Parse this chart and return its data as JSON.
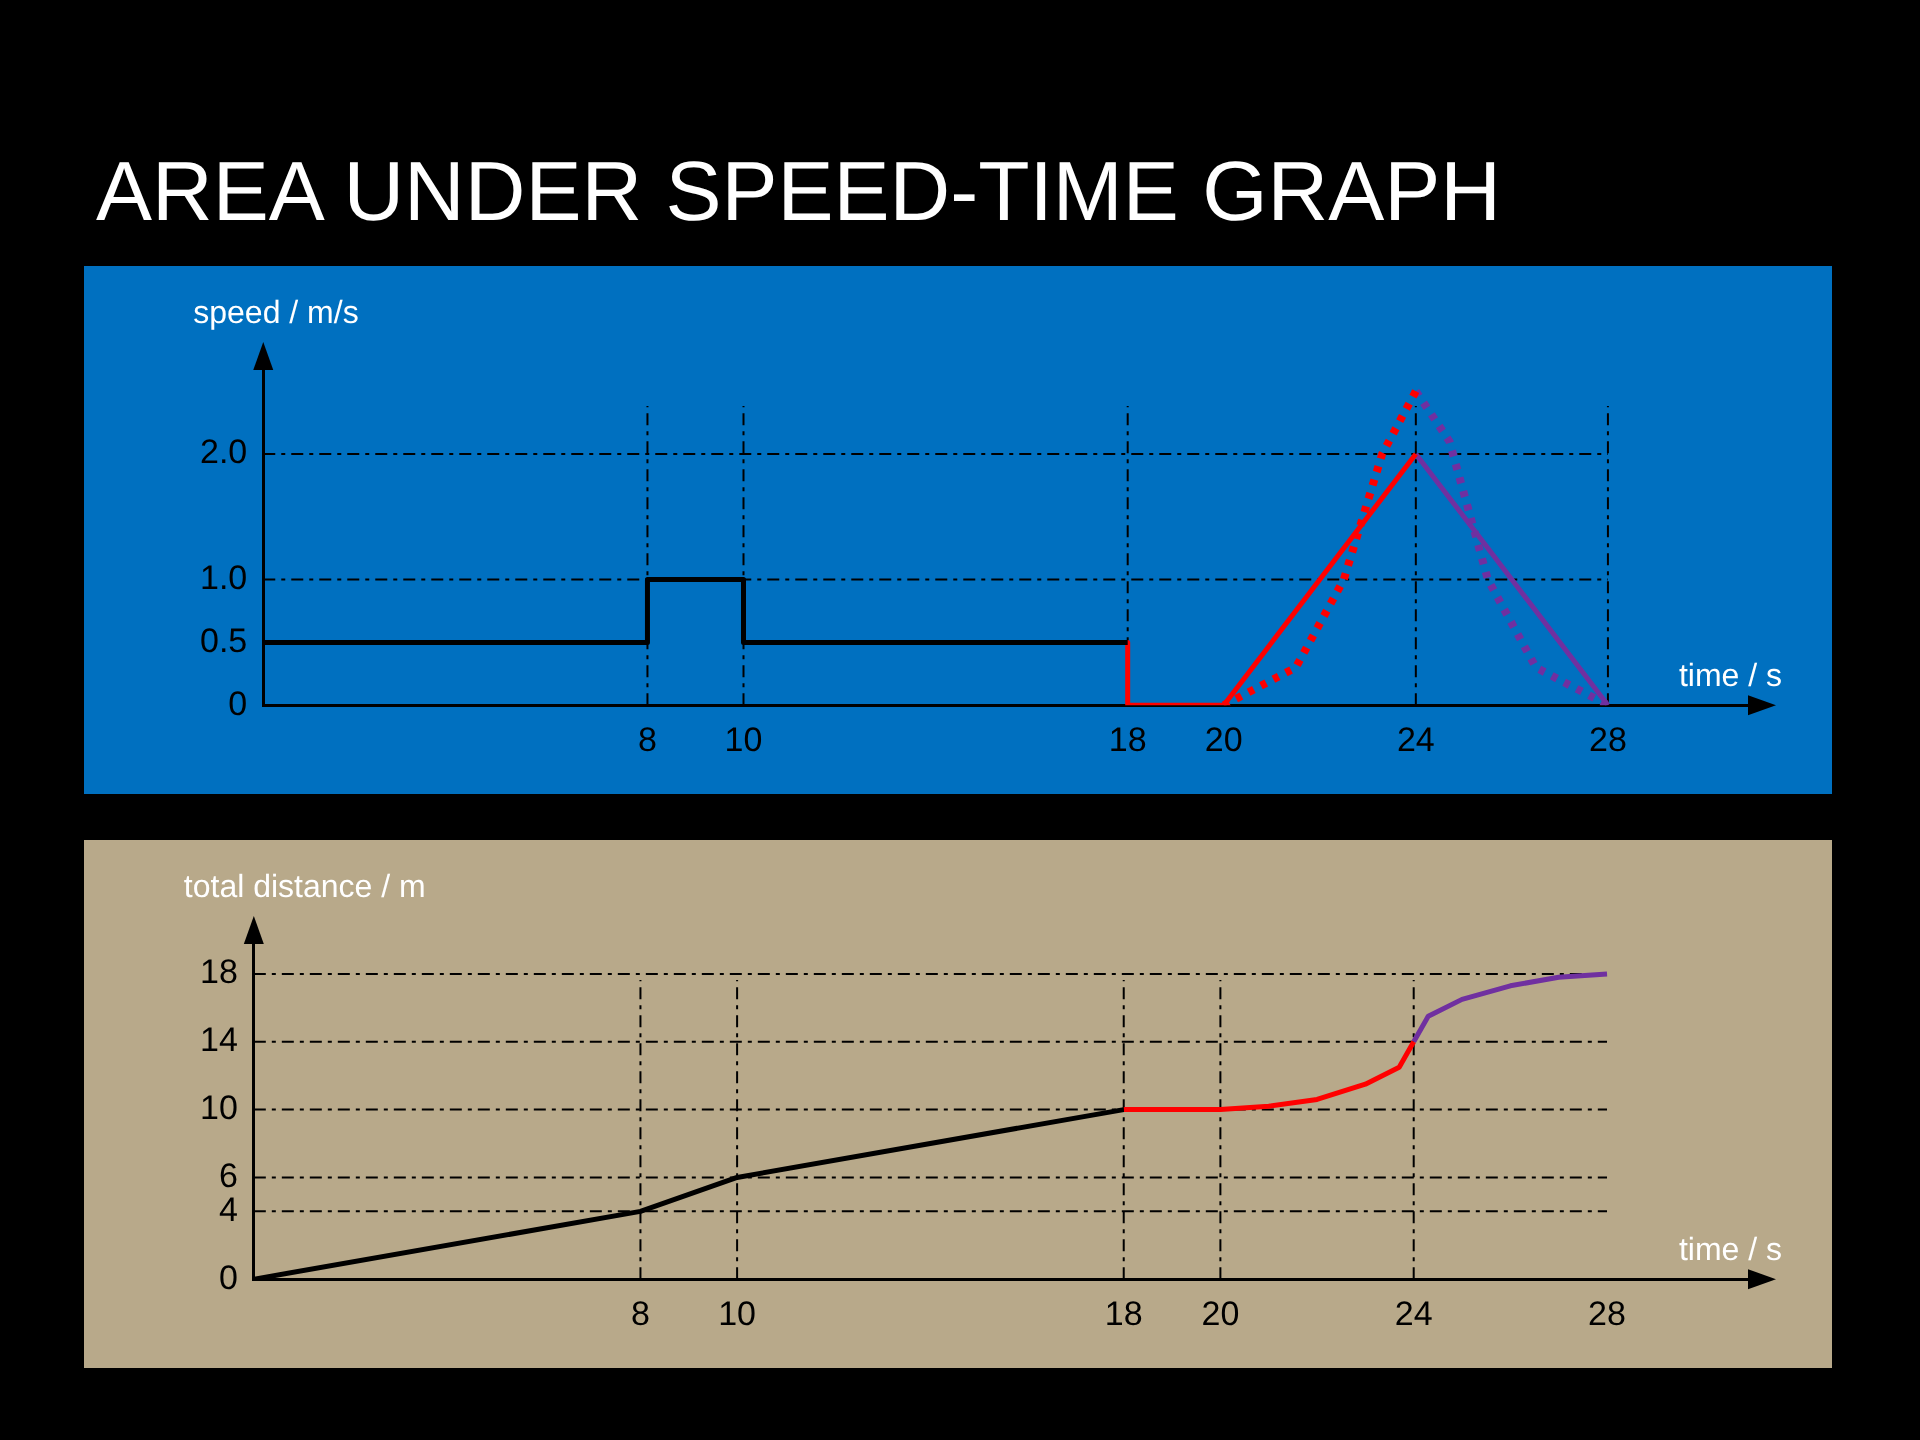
{
  "chart_data": [
    {
      "type": "line",
      "title": "AREA UNDER SPEED-TIME GRAPH",
      "ylabel": "speed / m/s",
      "xlabel": "time / s",
      "xlim": [
        0,
        31
      ],
      "ylim": [
        0,
        2.7
      ],
      "xticks": [
        8,
        10,
        18,
        20,
        24,
        28
      ],
      "yticks": [
        0,
        0.5,
        {
          "value": 1,
          "label": "1.0"
        },
        {
          "value": 2,
          "label": "2.0"
        }
      ],
      "grid": false,
      "series": [
        {
          "color": "#000000",
          "x": [
            0,
            8,
            8,
            10,
            10,
            18
          ],
          "values": [
            0.5,
            0.5,
            1.0,
            1.0,
            0.5,
            0.5
          ]
        },
        {
          "color": "#ff0000",
          "x": [
            18,
            18,
            20,
            24
          ],
          "values": [
            0.5,
            0,
            0,
            2.0
          ]
        },
        {
          "color": "#7030a0",
          "x": [
            24,
            28
          ],
          "values": [
            2.0,
            0
          ]
        },
        {
          "color": "#ff0000",
          "line_style": "dotted",
          "x": [
            20,
            21.5,
            22.5,
            23.3,
            24
          ],
          "values": [
            0,
            0.3,
            1.0,
            2.0,
            2.5
          ]
        },
        {
          "color": "#7030a0",
          "line_style": "dotted",
          "x": [
            24,
            24.7,
            25.5,
            26.5,
            28
          ],
          "values": [
            2.5,
            2.1,
            1.0,
            0.3,
            0
          ]
        }
      ],
      "ref_lines": [
        {
          "axis": "y",
          "value": 2.0
        },
        {
          "axis": "y",
          "value": 1.0
        },
        {
          "axis": "x",
          "value": 8
        },
        {
          "axis": "x",
          "value": 10
        },
        {
          "axis": "x",
          "value": 18
        },
        {
          "axis": "x",
          "value": 24
        },
        {
          "axis": "x",
          "value": 28
        }
      ]
    },
    {
      "type": "line",
      "ylabel": "total distance / m",
      "xlabel": "time / s",
      "xlim": [
        0,
        31
      ],
      "ylim": [
        0,
        20
      ],
      "xticks": [
        8,
        10,
        18,
        20,
        24,
        28
      ],
      "yticks": [
        0,
        4,
        6,
        10,
        14,
        18
      ],
      "grid": false,
      "series": [
        {
          "color": "#000000",
          "x": [
            0,
            8,
            10,
            18
          ],
          "values": [
            0,
            4,
            6,
            10
          ]
        },
        {
          "color": "#ff0000",
          "x": [
            18,
            20,
            21,
            22,
            23,
            23.7,
            24
          ],
          "values": [
            10,
            10,
            10.2,
            10.6,
            11.5,
            12.5,
            14
          ]
        },
        {
          "color": "#7030a0",
          "x": [
            24,
            24.3,
            25,
            26,
            27,
            28
          ],
          "values": [
            14,
            15.5,
            16.5,
            17.3,
            17.8,
            18
          ]
        }
      ],
      "ref_lines": [
        {
          "axis": "y",
          "value": 4
        },
        {
          "axis": "y",
          "value": 6
        },
        {
          "axis": "y",
          "value": 10
        },
        {
          "axis": "y",
          "value": 14
        },
        {
          "axis": "y",
          "value": 18
        },
        {
          "axis": "x",
          "value": 8
        },
        {
          "axis": "x",
          "value": 10
        },
        {
          "axis": "x",
          "value": 18
        },
        {
          "axis": "x",
          "value": 20
        },
        {
          "axis": "x",
          "value": 24
        }
      ]
    }
  ]
}
